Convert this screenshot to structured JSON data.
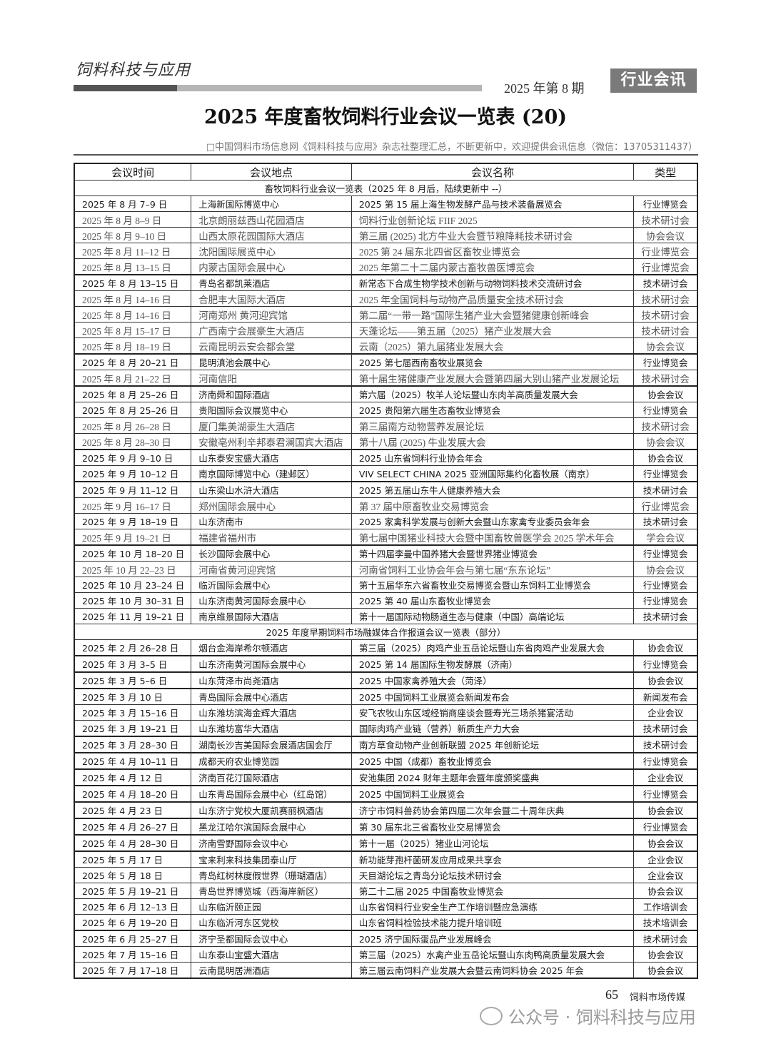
{
  "header": {
    "logo": "饲料科技与应用",
    "issue": "2025 年第 8 期",
    "section_tag": "行业会讯"
  },
  "title": "2025 年度畜牧饲料行业会议一览表 (20)",
  "subtitle": "□中国饲料市场信息网《饲料科技与应用》杂志社整理汇总，不断更新中，欢迎提供会讯信息（微信：13705311437）",
  "table": {
    "columns": [
      "会议时间",
      "会议地点",
      "会议名称",
      "类型"
    ],
    "sections": [
      {
        "heading": "畜牧饲料行业会议一览表（2025 年 8 月后，陆续更新中 --）",
        "rows": [
          [
            "2025 年 8 月 7–9 日",
            "上海新国际博览中心",
            "2025 第 15 届上海生物发酵产品与技术装备展览会",
            "行业博览会"
          ],
          [
            "2025 年 8 月 8–9 日",
            "北京朗丽兹西山花园酒店",
            "饲料行业创新论坛 FIIF 2025",
            "技术研讨会"
          ],
          [
            "2025 年 8 月 9–10 日",
            "山西太原花园国际大酒店",
            "第三届 (2025) 北方牛业大会暨节粮降耗技术研讨会",
            "协会会议"
          ],
          [
            "2025 年 8 月 11–12 日",
            "沈阳国际展览中心",
            "2025 第 24 届东北四省区畜牧业博览会",
            "行业博览会"
          ],
          [
            "2025 年 8 月 13–15 日",
            "内蒙古国际会展中心",
            "2025 年第二十二届内蒙古畜牧兽医博览会",
            "行业博览会"
          ],
          [
            "2025 年 8 月 13–15 日",
            "青岛名都凯莱酒店",
            "新常态下合成生物学技术创新与动物饲料技术交流研讨会",
            "技术研讨会"
          ],
          [
            "2025 年 8 月 14–16 日",
            "合肥丰大国际大酒店",
            "2025 年全国饲料与动物产品质量安全技术研讨会",
            "技术研讨会"
          ],
          [
            "2025 年 8 月 14–16 日",
            "河南郑州 黄河迎宾馆",
            "第二届“一带一路”国际生猪产业大会暨猪健康创新峰会",
            "技术研讨会"
          ],
          [
            "2025 年 8 月 15–17 日",
            "广西南宁会展豪生大酒店",
            "天蓬论坛——第五届（2025）猪产业发展大会",
            "技术研讨会"
          ],
          [
            "2025 年 8 月 18–19 日",
            "云南昆明云安会都会堂",
            "云南（2025）第九届猪业发展大会",
            "协会会议"
          ],
          [
            "2025 年 8 月 20–21 日",
            "昆明滇池会展中心",
            "2025 第七届西南畜牧业展览会",
            "行业博览会"
          ],
          [
            "2025 年 8 月 21–22 日",
            "河南信阳",
            "第十届生猪健康产业发展大会暨第四届大别山猪产业发展论坛",
            "技术研讨会"
          ],
          [
            "2025 年 8 月 25–26 日",
            "济南舜和国际酒店",
            "第六届（2025）牧羊人论坛暨山东肉羊高质量发展大会",
            "协会会议"
          ],
          [
            "2025 年 8 月 25–26 日",
            "贵阳国际会议展览中心",
            "2025 贵阳第六届生态畜牧业博览会",
            "行业博览会"
          ],
          [
            "2025 年 8 月 26–28 日",
            "厦门集美湖豪生大酒店",
            "第三届南方动物营养发展论坛",
            "技术研讨会"
          ],
          [
            "2025 年 8 月 28–30 日",
            "安徽亳州利辛邦泰君澜国宾大酒店",
            "第十八届 (2025) 牛业发展大会",
            "协会会议"
          ],
          [
            "2025 年 9 月 9–10 日",
            "山东泰安宝盛大酒店",
            "2025 山东省饲料行业协会年会",
            "协会会议"
          ],
          [
            "2025 年 9 月 10–12 日",
            "南京国际博览中心（建邺区）",
            "VIV SELECT CHINA 2025 亚洲国际集约化畜牧展（南京）",
            "行业博览会"
          ],
          [
            "2025 年 9 月 11–12 日",
            "山东梁山水浒大酒店",
            "2025 第五届山东牛人健康养殖大会",
            "技术研讨会"
          ],
          [
            "2025 年 9 月 16–17 日",
            "郑州国际会展中心",
            "第 37 届中原畜牧业交易博览会",
            "行业博览会"
          ],
          [
            "2025 年 9 月 18–19 日",
            "山东济南市",
            "2025 家禽科学发展与创新大会暨山东家禽专业委员会年会",
            "技术研讨会"
          ],
          [
            "2025 年 9 月 19–21 日",
            "福建省福州市",
            "第七届中国猪业科技大会暨中国畜牧兽医学会 2025 学术年会",
            "学会会议"
          ],
          [
            "2025 年 10 月 18–20 日",
            "长沙国际会展中心",
            "第十四届李曼中国养猪大会暨世界猪业博览会",
            "行业博览会"
          ],
          [
            "2025 年 10 月 22–23 日",
            "河南省黄河迎宾馆",
            "河南省饲料工业协会年会与第七届“东东论坛”",
            "协会会议"
          ],
          [
            "2025 年 10 月 23–24 日",
            "临沂国际会展中心",
            "第十五届华东六省畜牧业交易博览会暨山东饲料工业博览会",
            "行业博览会"
          ],
          [
            "2025 年 10 月 30–31 日",
            "山东济南黄河国际会展中心",
            "2025 第 40 届山东畜牧业博览会",
            "行业博览会"
          ],
          [
            "2025 年 11 月 19–21 日",
            "南京维景国际大酒店",
            "第十一届国际动物肠道生态与健康（中国）高端论坛",
            "技术研讨会"
          ]
        ]
      },
      {
        "heading": "2025 年度早期饲料市场融媒体合作报道会议一览表（部分）",
        "rows": [
          [
            "2025 年 2 月 26–28 日",
            "烟台金海岸希尔顿酒店",
            "第三届（2025）肉鸡产业五岳论坛暨山东省肉鸡产业发展大会",
            "协会会议"
          ],
          [
            "2025 年 3 月 3–5 日",
            "山东济南黄河国际会展中心",
            "2025 第 14 届国际生物发酵展（济南）",
            "行业博览会"
          ],
          [
            "2025 年 3 月 5–6 日",
            "山东菏泽市尚尧酒店",
            "2025 中国家禽养殖大会（菏泽）",
            "协会会议"
          ],
          [
            "2025 年 3 月 10 日",
            "青岛国际会展中心酒店",
            "2025 中国饲料工业展览会新闻发布会",
            "新闻发布会"
          ],
          [
            "2025 年 3 月 15–16 日",
            "山东潍坊滨海金辉大酒店",
            "安飞农牧山东区域经销商座谈会暨寿光三场杀猪宴活动",
            "企业会议"
          ],
          [
            "2025 年 3 月 19–21 日",
            "山东潍坊富华大酒店",
            "国际肉鸡产业链（营养）新质生产力大会",
            "技术研讨会"
          ],
          [
            "2025 年 3 月 28–30 日",
            "湖南长沙吉美国际会展酒店国会厅",
            "南方草食动物产业创新联盟 2025 年创新论坛",
            "技术研讨会"
          ],
          [
            "2025 年 4 月 10–11 日",
            "成都天府农业博览园",
            "2025 中国（成都）畜牧业博览会",
            "行业博览会"
          ],
          [
            "2025 年 4 月 12 日",
            "济南百花汀国际酒店",
            "安池集团 2024 财年主题年会暨年度颁奖盛典",
            "企业会议"
          ],
          [
            "2025 年 4 月 18–20 日",
            "山东青岛国际会展中心（红岛馆）",
            "2025 中国饲料工业展览会",
            "行业博览会"
          ],
          [
            "2025 年 4 月 23 日",
            "山东济宁党校大厦凯赛丽枫酒店",
            "济宁市饲料兽药协会第四届二次年会暨二十周年庆典",
            "协会会议"
          ],
          [
            "2025 年 4 月 26–27 日",
            "黑龙江哈尔滨国际会展中心",
            "第 30 届东北三省畜牧业交易博览会",
            "行业博览会"
          ],
          [
            "2025 年 4 月 28–30 日",
            "济南雪野国际会议中心",
            "第十一届（2025）猪业山河论坛",
            "协会会议"
          ],
          [
            "2025 年 5 月 17 日",
            "宝来利来科技集团泰山厅",
            "新功能芽孢杆菌研发应用成果共享会",
            "企业会议"
          ],
          [
            "2025 年 5 月 18 日",
            "青岛红树林度假世界（珊瑚酒店）",
            "天目湖论坛之青岛分论坛技术研讨会",
            "企业会议"
          ],
          [
            "2025 年 5 月 19–21 日",
            "青岛世界博览城（西海岸新区）",
            "第二十二届 2025 中国畜牧业博览会",
            "协会会议"
          ],
          [
            "2025 年 6 月 12–13 日",
            "山东临沂颐正园",
            "山东省饲料行业安全生产工作培训暨应急演练",
            "工作培训会"
          ],
          [
            "2025 年 6 月 19–20 日",
            "山东临沂河东区党校",
            "山东省饲料检验技术能力提升培训班",
            "技术培训会"
          ],
          [
            "2025 年 6 月 25–27 日",
            "济宁圣都国际会议中心",
            "2025 济宁国际蛋品产业发展峰会",
            "技术研讨会"
          ],
          [
            "2025 年 7 月 15–16 日",
            "山东泰山宝盛大酒店",
            "第三届（2025）水禽产业五岳论坛暨山东肉鸭高质量发展大会",
            "协会会议"
          ],
          [
            "2025 年 7 月 17–18 日",
            "云南昆明居洲酒店",
            "第三届云南饲料产业发展大会暨云南饲料协会 2025 年会",
            "协会会议"
          ]
        ]
      }
    ]
  },
  "footer": {
    "page_number": "65",
    "publisher": "饲料市场传媒",
    "watermark": "公众号 · 饲料科技与应用"
  }
}
